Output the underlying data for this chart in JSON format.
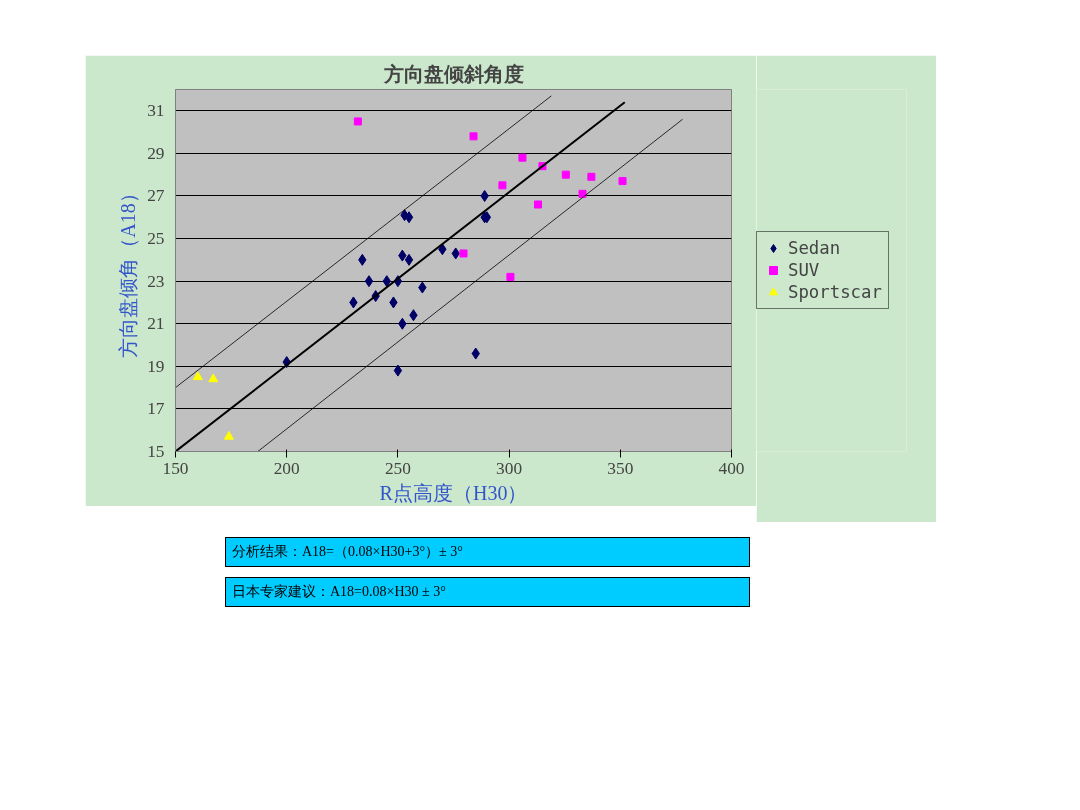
{
  "chart_data": {
    "type": "scatter",
    "title": "方向盘倾斜角度",
    "xlabel": "R点高度（H30）",
    "ylabel": "方向盘倾角（A18）",
    "xlim": [
      150,
      400
    ],
    "xticks": [
      150,
      200,
      250,
      300,
      350,
      400
    ],
    "ylim": [
      15,
      32
    ],
    "yticks": [
      15,
      17,
      19,
      21,
      23,
      25,
      27,
      29,
      31
    ],
    "grid": "y",
    "legend": "right",
    "series": [
      {
        "name": "Sedan",
        "color": "#000066",
        "marker": "diamond",
        "x": [
          200,
          234,
          230,
          237,
          240,
          245,
          248,
          250,
          250,
          252,
          252,
          253,
          255,
          255,
          257,
          261,
          270,
          276,
          285,
          289,
          289,
          290
        ],
        "values": [
          19.2,
          24,
          22,
          23,
          22.3,
          23,
          22,
          23,
          18.8,
          24.2,
          21,
          26.1,
          26,
          24,
          21.4,
          22.7,
          24.5,
          24.3,
          19.6,
          27,
          26,
          26
        ]
      },
      {
        "name": "SUV",
        "color": "#ff00ff",
        "marker": "square",
        "x": [
          232,
          279.5,
          284,
          297,
          300.6,
          306,
          313,
          315,
          325.5,
          333,
          337,
          351
        ],
        "values": [
          30.5,
          24.3,
          29.8,
          27.5,
          23.2,
          28.8,
          26.6,
          28.4,
          28,
          27.1,
          27.9,
          27.7
        ]
      },
      {
        "name": "Sportscar",
        "color": "#ffff00",
        "marker": "triangle",
        "x": [
          160,
          167,
          174
        ],
        "values": [
          18.5,
          18.4,
          15.7
        ]
      },
      {
        "type": "line",
        "color": "#000000",
        "line_style": "solid",
        "x": [
          150,
          352
        ],
        "values": [
          15,
          31.4
        ]
      },
      {
        "type": "line",
        "color": "#000000",
        "line_style": "solid",
        "x": [
          150,
          319
        ],
        "values": [
          18,
          31.7
        ]
      },
      {
        "type": "line",
        "color": "#000000",
        "line_style": "solid",
        "x": [
          187,
          378
        ],
        "values": [
          15,
          30.6
        ]
      }
    ],
    "annotations": [
      "分析结果：A18=（0.08×H30+3°）± 3°",
      "日本专家建议：A18=0.08×H30 ± 3°"
    ]
  }
}
